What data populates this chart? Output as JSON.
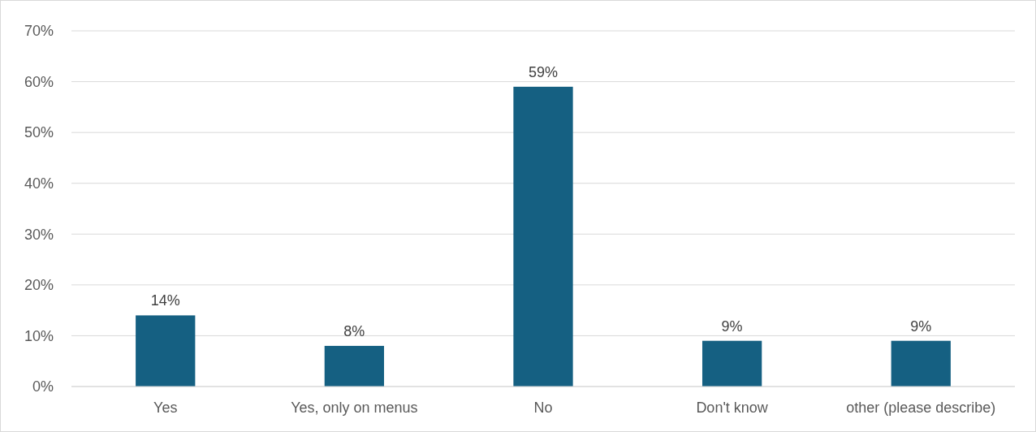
{
  "chart_data": {
    "type": "bar",
    "categories": [
      "Yes",
      "Yes, only on menus",
      "No",
      "Don't know",
      "other (please describe)"
    ],
    "values": [
      14,
      8,
      59,
      9,
      9
    ],
    "value_labels": [
      "14%",
      "8%",
      "59%",
      "9%",
      "9%"
    ],
    "color": "#156082",
    "ylim": [
      0,
      70
    ],
    "yticks": [
      {
        "value": 0,
        "label": "0%"
      },
      {
        "value": 10,
        "label": "10%"
      },
      {
        "value": 20,
        "label": "20%"
      },
      {
        "value": 30,
        "label": "30%"
      },
      {
        "value": 40,
        "label": "40%"
      },
      {
        "value": 50,
        "label": "50%"
      },
      {
        "value": 60,
        "label": "60%"
      },
      {
        "value": 70,
        "label": "70%"
      }
    ],
    "grid": "y"
  }
}
